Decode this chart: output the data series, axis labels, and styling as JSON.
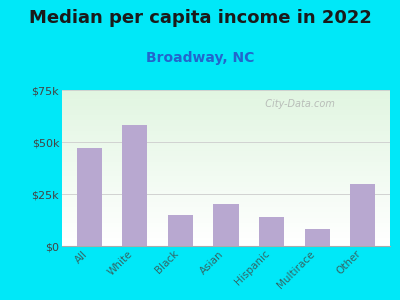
{
  "title": "Median per capita income in 2022",
  "subtitle": "Broadway, NC",
  "categories": [
    "All",
    "White",
    "Black",
    "Asian",
    "Hispanic",
    "Multirace",
    "Other"
  ],
  "values": [
    47000,
    58000,
    15000,
    20000,
    14000,
    8000,
    30000
  ],
  "bar_color": "#b8a8d0",
  "background_outer": "#00e8f8",
  "title_color": "#1a1a1a",
  "subtitle_color": "#2266cc",
  "tick_label_color": "#444444",
  "xtick_label_color": "#336666",
  "ylim": [
    0,
    75000
  ],
  "yticks": [
    0,
    25000,
    50000,
    75000
  ],
  "ytick_labels": [
    "$0",
    "$25k",
    "$50k",
    "$75k"
  ],
  "title_fontsize": 13,
  "subtitle_fontsize": 10,
  "watermark": "  City-Data.com"
}
